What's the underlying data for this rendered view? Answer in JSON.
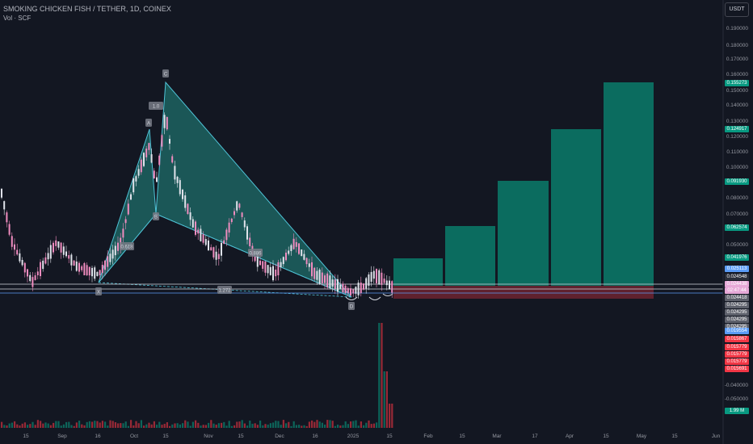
{
  "header": {
    "symbol_line": "SMOKING CHICKEN FISH / TETHER, 1D, COINEX",
    "volume_line": "Vol · SCF"
  },
  "currency_button": "USDT",
  "price_axis": {
    "ticks": [
      "0.190000",
      "0.180000",
      "0.170000",
      "0.160000",
      "0.150000",
      "0.140000",
      "0.130000",
      "0.120000",
      "0.110000",
      "0.100000",
      "0.080000",
      "0.070000",
      "0.050000",
      "-0.040000",
      "-0.050000"
    ]
  },
  "price_tags": [
    {
      "text": "0.155273",
      "color": "#089981"
    },
    {
      "text": "0.124917",
      "color": "#089981"
    },
    {
      "text": "0.091930",
      "color": "#089981"
    },
    {
      "text": "0.062574",
      "color": "#089981"
    },
    {
      "text": "0.041976",
      "color": "#089981"
    },
    {
      "text": "0.025113",
      "color": "#5b9cf6"
    },
    {
      "text": "0.024548",
      "color": "#2a2e39"
    },
    {
      "text": "0.024438",
      "color": "#e6a8d7"
    },
    {
      "text": "02:47:44",
      "color": "#e6a8d7"
    },
    {
      "text": "0.024418",
      "color": "#5d606b"
    },
    {
      "text": "0.024295",
      "color": "#5d606b"
    },
    {
      "text": "0.024295",
      "color": "#5d606b"
    },
    {
      "text": "0.024295",
      "color": "#5d606b"
    },
    {
      "text": "0.024295",
      "color": "#5d606b"
    },
    {
      "text": "0.019554",
      "color": "#5b9cf6"
    },
    {
      "text": "0.015867",
      "color": "#f23645"
    },
    {
      "text": "0.015779",
      "color": "#f23645"
    },
    {
      "text": "0.015779",
      "color": "#f23645"
    },
    {
      "text": "0.015779",
      "color": "#f23645"
    },
    {
      "text": "0.015691",
      "color": "#f23645"
    },
    {
      "text": "1.99 M",
      "color": "#089981"
    }
  ],
  "time_axis": [
    "15",
    "Sep",
    "16",
    "Oct",
    "15",
    "Nov",
    "15",
    "Dec",
    "16",
    "2025",
    "15",
    "Feb",
    "15",
    "Mar",
    "17",
    "Apr",
    "15",
    "May",
    "15",
    "Jun"
  ],
  "pattern_labels": [
    "X",
    "A",
    "B",
    "C",
    "D",
    "1.0",
    "0.618",
    "1.272",
    "0.886"
  ],
  "colors": {
    "background": "#131722",
    "up": "#e0e3eb",
    "down": "#f08cbf",
    "pattern_fill": "#26a69a",
    "target_fill": "#089981",
    "stop_fill": "#7a2533"
  }
}
